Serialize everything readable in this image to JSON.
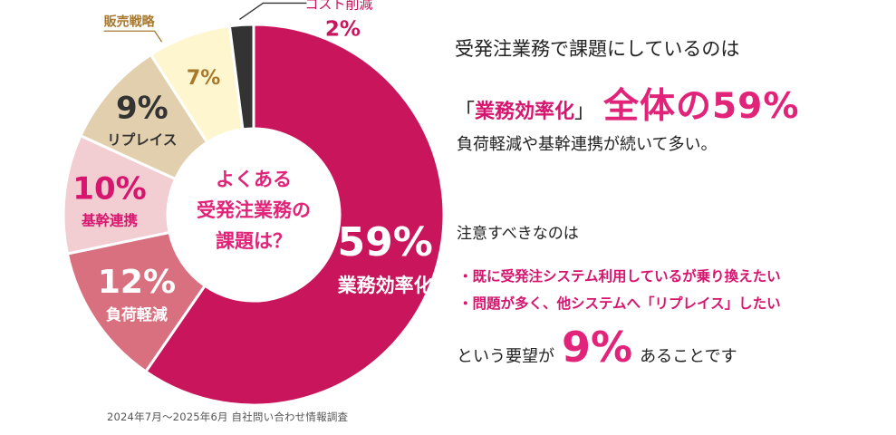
{
  "chart_data": {
    "type": "pie",
    "donut": true,
    "center_label": [
      "よくある",
      "受発注業務の",
      "課題は？"
    ],
    "slices": [
      {
        "label": "業務効率化",
        "value": 59,
        "display": "59%",
        "color": "#c8155c"
      },
      {
        "label": "負荷軽減",
        "value": 12,
        "display": "12%",
        "color": "#d9707f"
      },
      {
        "label": "基幹連携",
        "value": 10,
        "display": "10%",
        "color": "#f2cdd1"
      },
      {
        "label": "リプレイス",
        "value": 9,
        "display": "9%",
        "color": "#e2cfae"
      },
      {
        "label": "販売戦略",
        "value": 7,
        "display": "7%",
        "color": "#fdf6cf"
      },
      {
        "label": "コスト削減",
        "value": 2,
        "display": "2%",
        "color": "#333333"
      }
    ],
    "label_colors": {
      "業務効率化": "#ffffff",
      "負荷軽減": "#ffffff",
      "基幹連携": "#d6156f",
      "リプレイス": "#333333",
      "販売戦略": "#a8782d",
      "コスト削減": "#c8155c"
    }
  },
  "source_note": "2024年7月〜2025年6月 自社問い合わせ情報調査",
  "headline": {
    "line1": "受発注業務で課題にしているのは",
    "bracket_open": "「",
    "bracket_term": "業務効率化",
    "bracket_close": "」",
    "big": "全体の59%",
    "line3": "負荷軽減や基幹連携が続いて多い。"
  },
  "note": {
    "title": "注意すべきなのは",
    "items": [
      "既に受発注システム利用しているが乗り換えたい",
      "問題が多く、他システムへ「リプレイス」したい"
    ],
    "conclusion_before": "という要望が",
    "conclusion_value": "9%",
    "conclusion_after": "あることです"
  }
}
